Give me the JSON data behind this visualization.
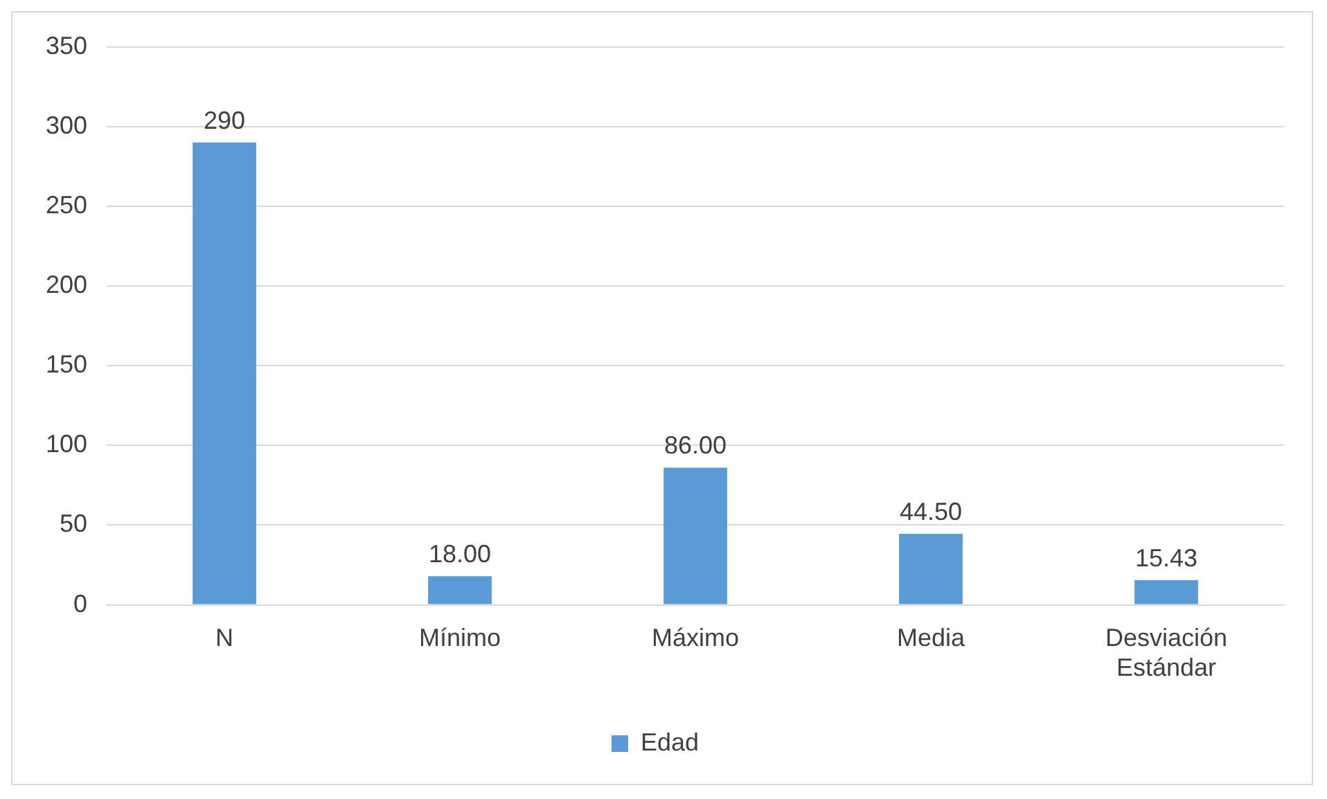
{
  "chart_data": {
    "type": "bar",
    "categories": [
      "N",
      "Mínimo",
      "Máximo",
      "Media",
      "Desviación Estándar"
    ],
    "series": [
      {
        "name": "Edad",
        "color": "#5b9bd5",
        "values": [
          290,
          18,
          86,
          44.5,
          15.43
        ],
        "value_labels": [
          "290",
          "18.00",
          "86.00",
          "44.50",
          "15.43"
        ]
      }
    ],
    "ylim": [
      0,
      350
    ],
    "yticks": [
      0,
      50,
      100,
      150,
      200,
      250,
      300,
      350
    ],
    "grid": "y",
    "legend": "bottom"
  }
}
